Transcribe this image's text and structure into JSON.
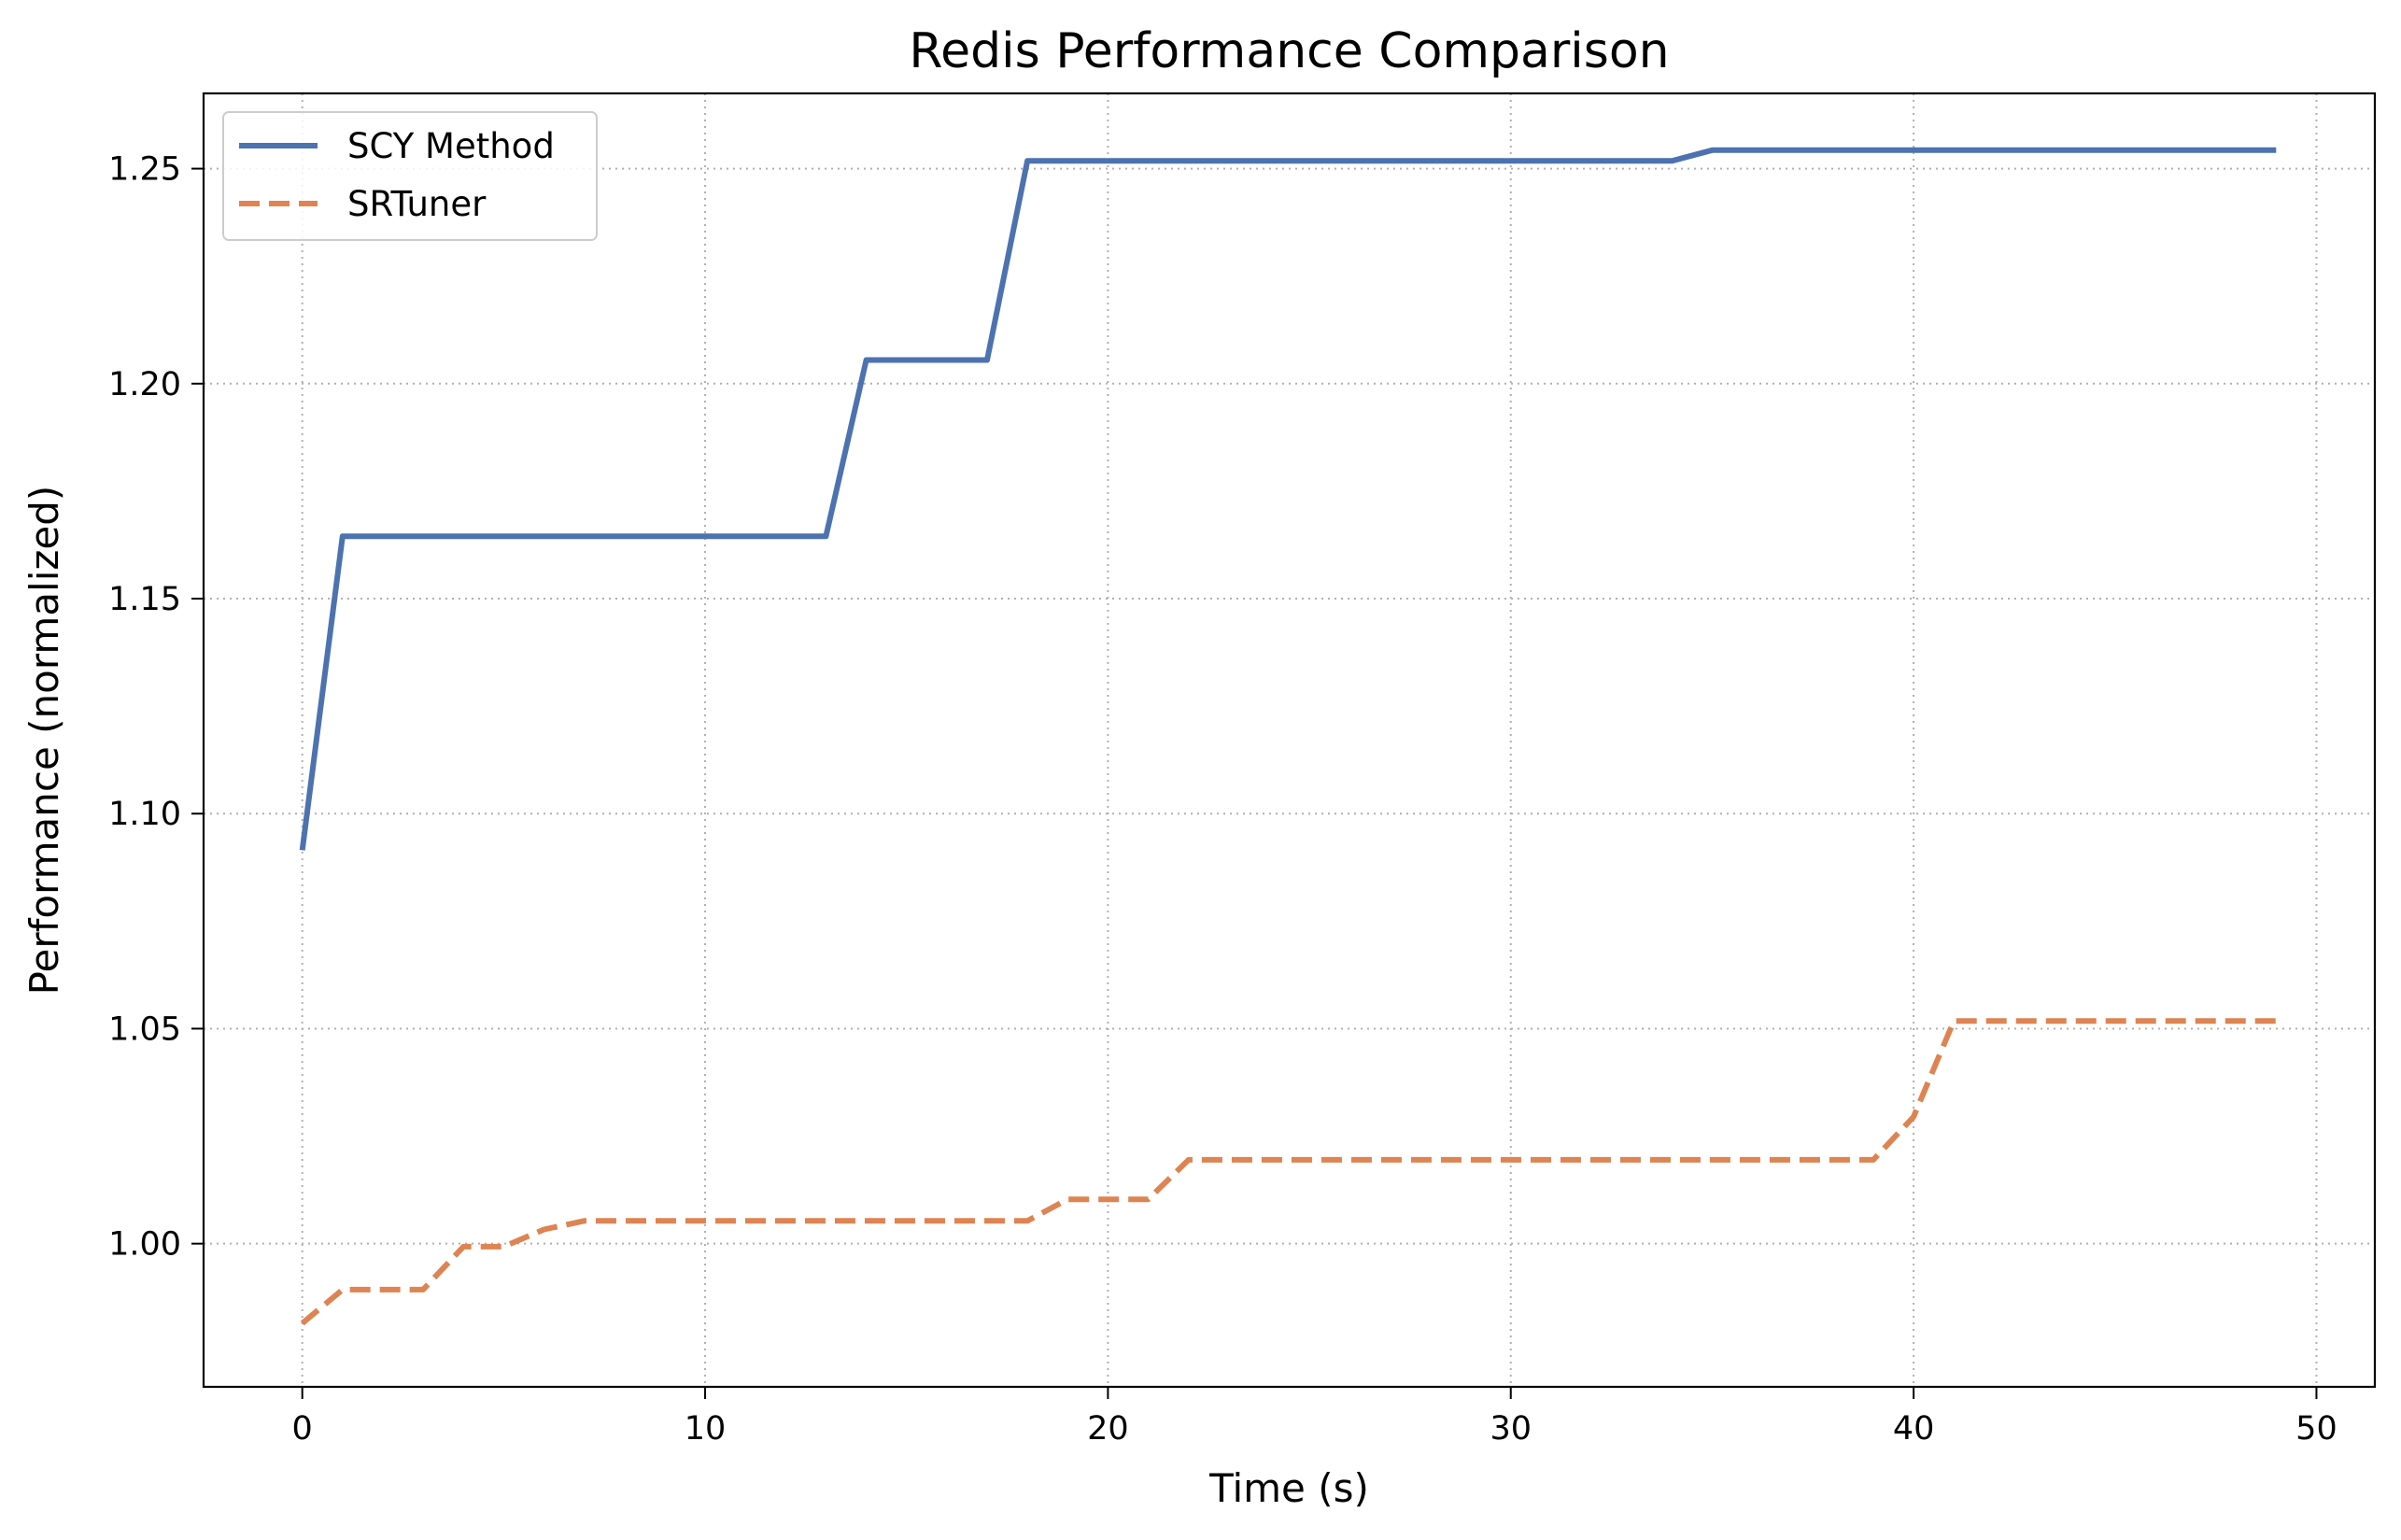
{
  "chart_data": {
    "type": "line",
    "title": "Redis Performance Comparison",
    "xlabel": "Time (s)",
    "ylabel": "Performance (normalized)",
    "xlim": [
      -2.45,
      51.45
    ],
    "ylim": [
      0.9667,
      1.2675
    ],
    "xticks": [
      0,
      10,
      20,
      30,
      40,
      50
    ],
    "xtick_labels": [
      "0",
      "10",
      "20",
      "30",
      "40",
      "50"
    ],
    "yticks": [
      1.0,
      1.05,
      1.1,
      1.15,
      1.2,
      1.25
    ],
    "ytick_labels": [
      "1.00",
      "1.05",
      "1.10",
      "1.15",
      "1.20",
      "1.25"
    ],
    "grid": true,
    "legend_position": "upper-left",
    "series": [
      {
        "name": "SCY Method",
        "color": "#4c72b0",
        "linestyle": "solid",
        "x": [
          0,
          1,
          2,
          3,
          4,
          5,
          6,
          7,
          8,
          9,
          10,
          11,
          12,
          13,
          14,
          15,
          16,
          17,
          18,
          19,
          20,
          21,
          22,
          23,
          24,
          25,
          26,
          27,
          28,
          29,
          30,
          31,
          32,
          33,
          34,
          35,
          36,
          37,
          38,
          39,
          40,
          41,
          42,
          43,
          44,
          45,
          46,
          47,
          48,
          49
        ],
        "y": [
          1.0915,
          1.1645,
          1.1645,
          1.1645,
          1.1645,
          1.1645,
          1.1645,
          1.1645,
          1.1645,
          1.1645,
          1.1645,
          1.1645,
          1.1645,
          1.1645,
          1.2055,
          1.2055,
          1.2055,
          1.2055,
          1.2518,
          1.2518,
          1.2518,
          1.2518,
          1.2518,
          1.2518,
          1.2518,
          1.2518,
          1.2518,
          1.2518,
          1.2518,
          1.2518,
          1.2518,
          1.2518,
          1.2518,
          1.2518,
          1.2518,
          1.2543,
          1.2543,
          1.2543,
          1.2543,
          1.2543,
          1.2543,
          1.2543,
          1.2543,
          1.2543,
          1.2543,
          1.2543,
          1.2543,
          1.2543,
          1.2543,
          1.2543
        ]
      },
      {
        "name": "SRTuner",
        "color": "#dd8452",
        "linestyle": "dashed",
        "x": [
          0,
          1,
          2,
          3,
          4,
          5,
          6,
          7,
          8,
          9,
          10,
          11,
          12,
          13,
          14,
          15,
          16,
          17,
          18,
          19,
          20,
          21,
          22,
          23,
          24,
          25,
          26,
          27,
          28,
          29,
          30,
          31,
          32,
          33,
          34,
          35,
          36,
          37,
          38,
          39,
          40,
          41,
          42,
          43,
          44,
          45,
          46,
          47,
          48,
          49
        ],
        "y": [
          0.9815,
          0.9893,
          0.9893,
          0.9893,
          0.9993,
          0.9993,
          1.0033,
          1.0053,
          1.0053,
          1.0053,
          1.0053,
          1.0053,
          1.0053,
          1.0053,
          1.0053,
          1.0053,
          1.0053,
          1.0053,
          1.0053,
          1.0103,
          1.0103,
          1.0103,
          1.0195,
          1.0195,
          1.0195,
          1.0195,
          1.0195,
          1.0195,
          1.0195,
          1.0195,
          1.0195,
          1.0195,
          1.0195,
          1.0195,
          1.0195,
          1.0195,
          1.0195,
          1.0195,
          1.0195,
          1.0195,
          1.0295,
          1.0518,
          1.0518,
          1.0518,
          1.0518,
          1.0518,
          1.0518,
          1.0518,
          1.0518,
          1.0518
        ]
      }
    ]
  }
}
